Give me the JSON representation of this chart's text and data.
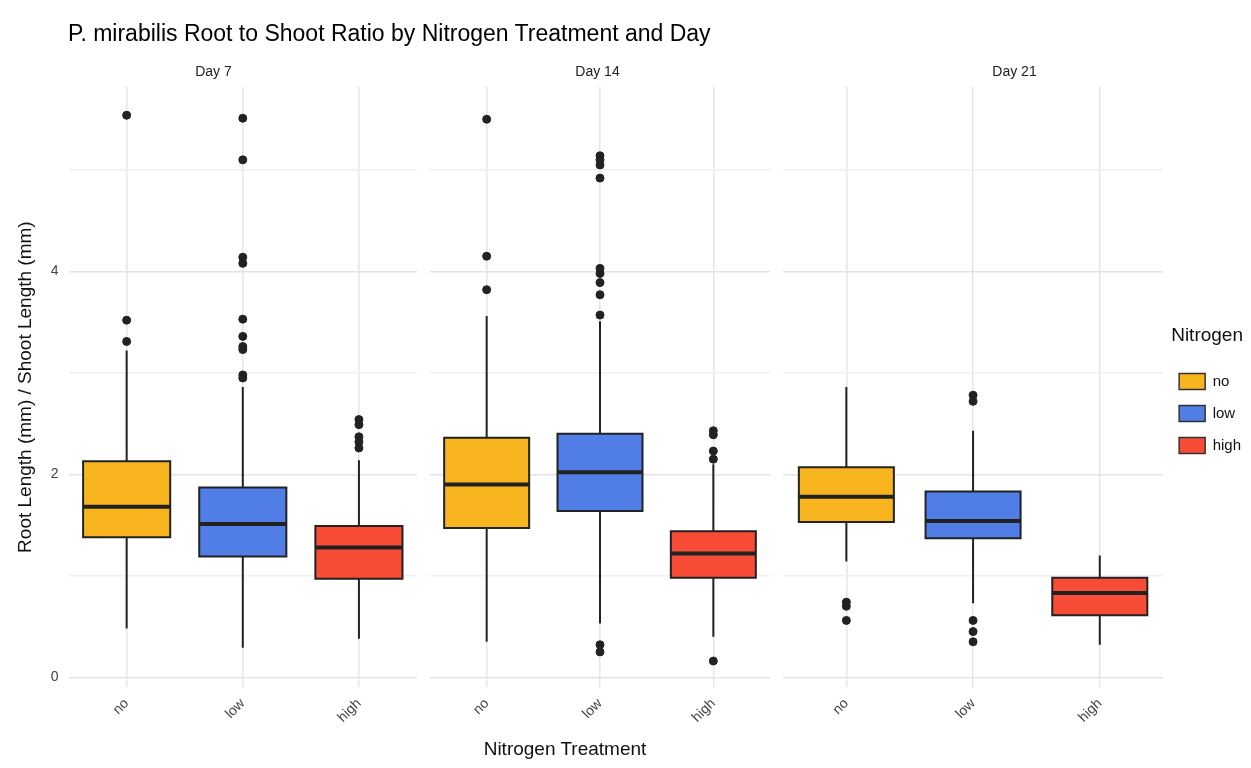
{
  "chart_data": [
    {
      "type": "box",
      "title": "P. mirabilis Root to Shoot Ratio by Nitrogen Treatment and Day",
      "subtitle": "Day 7",
      "ylabel": "Root Length (mm) / Shoot Length (mm)",
      "categories": [
        "no",
        "low",
        "high"
      ],
      "ylim": [
        -0.1,
        5.82
      ],
      "yticks": [
        0,
        {
          "value": 1,
          "label": null
        },
        2,
        {
          "value": 3,
          "label": null
        },
        4,
        {
          "value": 5,
          "label": null
        }
      ],
      "grid": true,
      "marker": "circle",
      "legend": false,
      "series": [
        {
          "color": "#f9b520",
          "boxes": [
            {
              "low": 0.48,
              "q1": 1.38,
              "median": 1.68,
              "q3": 2.13,
              "high": 3.22,
              "outliers": [
                5.54,
                3.52,
                3.31
              ]
            },
            null,
            null
          ]
        },
        {
          "color": "#507de6",
          "boxes": [
            null,
            {
              "low": 0.29,
              "q1": 1.19,
              "median": 1.51,
              "q3": 1.87,
              "high": 2.86,
              "outliers": [
                5.51,
                5.1,
                4.14,
                4.08,
                3.53,
                3.36,
                3.26,
                3.23,
                2.98,
                2.95
              ]
            },
            null
          ]
        },
        {
          "color": "#f94c37",
          "boxes": [
            null,
            null,
            {
              "low": 0.38,
              "q1": 0.97,
              "median": 1.28,
              "q3": 1.49,
              "high": 2.14,
              "outliers": [
                2.54,
                2.49,
                2.37,
                2.32,
                2.26
              ]
            }
          ]
        }
      ]
    },
    {
      "type": "box",
      "subtitle": "Day 14",
      "xlabel": "Nitrogen Treatment",
      "categories": [
        "no",
        "low",
        "high"
      ],
      "ylim": [
        -0.1,
        5.82
      ],
      "yticks": [
        0,
        {
          "value": 1,
          "label": null
        },
        2,
        {
          "value": 3,
          "label": null
        },
        4,
        {
          "value": 5,
          "label": null
        }
      ],
      "tick_labels": "x",
      "grid": true,
      "marker": "circle",
      "legend": false,
      "series": [
        {
          "color": "#f9b520",
          "boxes": [
            {
              "low": 0.35,
              "q1": 1.47,
              "median": 1.9,
              "q3": 2.36,
              "high": 3.56,
              "outliers": [
                5.5,
                4.15,
                3.82
              ]
            },
            null,
            null
          ]
        },
        {
          "color": "#507de6",
          "boxes": [
            null,
            {
              "low": 0.53,
              "q1": 1.64,
              "median": 2.02,
              "q3": 2.4,
              "high": 3.51,
              "outliers": [
                5.14,
                5.1,
                5.05,
                4.92,
                4.03,
                3.98,
                3.89,
                3.77,
                3.57,
                0.32,
                0.25
              ]
            },
            null
          ]
        },
        {
          "color": "#f94c37",
          "boxes": [
            null,
            null,
            {
              "low": 0.4,
              "q1": 0.98,
              "median": 1.22,
              "q3": 1.44,
              "high": 2.1,
              "outliers": [
                2.43,
                2.39,
                2.23,
                2.15,
                0.16
              ]
            }
          ]
        }
      ]
    },
    {
      "type": "box",
      "subtitle": "Day 21",
      "legend_title": "Nitrogen",
      "categories": [
        "no",
        "low",
        "high"
      ],
      "ylim": [
        -0.1,
        5.82
      ],
      "yticks": [
        0,
        {
          "value": 1,
          "label": null
        },
        2,
        {
          "value": 3,
          "label": null
        },
        4,
        {
          "value": 5,
          "label": null
        }
      ],
      "tick_labels": "x",
      "grid": true,
      "marker": "circle",
      "legend": "right",
      "series": [
        {
          "name": "no",
          "color": "#f9b520",
          "boxes": [
            {
              "low": 1.14,
              "q1": 1.53,
              "median": 1.78,
              "q3": 2.07,
              "high": 2.86,
              "outliers": [
                0.74,
                0.7,
                0.56
              ]
            },
            null,
            null
          ]
        },
        {
          "name": "low",
          "color": "#507de6",
          "boxes": [
            null,
            {
              "low": 0.73,
              "q1": 1.37,
              "median": 1.54,
              "q3": 1.83,
              "high": 2.43,
              "outliers": [
                2.78,
                2.72,
                0.56,
                0.45,
                0.35
              ]
            },
            null
          ]
        },
        {
          "name": "high",
          "color": "#f94c37",
          "boxes": [
            null,
            null,
            {
              "low": 0.32,
              "q1": 0.61,
              "median": 0.83,
              "q3": 0.98,
              "high": 1.2
            }
          ]
        }
      ]
    }
  ]
}
